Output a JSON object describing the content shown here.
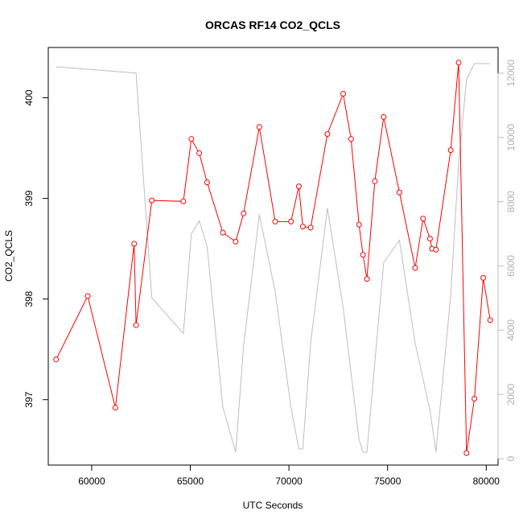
{
  "chart_data": {
    "type": "line",
    "title": "ORCAS RF14 CO2_QCLS",
    "xlabel": "UTC Seconds",
    "ylabel": "CO2_QCLS",
    "xlim": [
      57800,
      80600
    ],
    "ylim": [
      396.35,
      400.5
    ],
    "y2lim": [
      -200,
      12800
    ],
    "xticks": [
      60000,
      65000,
      70000,
      75000,
      80000
    ],
    "yticks": [
      397,
      398,
      399,
      400
    ],
    "y2ticks": [
      0,
      2000,
      4000,
      6000,
      8000,
      10000,
      12000
    ],
    "grid": false,
    "colors": {
      "primary": "#ff0000",
      "secondary": "#bebebe"
    },
    "series": [
      {
        "axis": "left",
        "style": "line+points",
        "x": [
          58200,
          59800,
          61200,
          62150,
          62250,
          63050,
          64650,
          65050,
          65450,
          65850,
          66650,
          67300,
          67700,
          68500,
          69300,
          70100,
          70500,
          70700,
          71100,
          71950,
          72750,
          73150,
          73550,
          73750,
          73950,
          74350,
          74800,
          75600,
          76400,
          76800,
          77150,
          77250,
          77450,
          78200,
          78600,
          79000,
          79400,
          79850,
          80200
        ],
        "y": [
          397.4,
          398.03,
          396.92,
          398.55,
          397.74,
          398.98,
          398.97,
          399.59,
          399.45,
          399.16,
          398.66,
          398.57,
          398.85,
          399.71,
          398.77,
          398.77,
          399.12,
          398.72,
          398.71,
          399.64,
          400.04,
          399.59,
          398.74,
          398.44,
          398.2,
          399.17,
          399.81,
          399.06,
          398.31,
          398.8,
          398.6,
          398.5,
          398.49,
          399.48,
          400.35,
          396.47,
          397.01,
          398.21,
          397.79
        ]
      },
      {
        "axis": "right",
        "style": "line",
        "x": [
          58200,
          62250,
          63050,
          64650,
          65050,
          65450,
          65850,
          66650,
          67300,
          67700,
          68500,
          69300,
          70100,
          70500,
          70700,
          71100,
          71950,
          72750,
          73550,
          73750,
          73950,
          74800,
          75600,
          76400,
          77150,
          77450,
          78200,
          78600,
          79000,
          79400,
          80200
        ],
        "y": [
          12200,
          12000,
          5000,
          3900,
          7000,
          7400,
          6600,
          1600,
          200,
          3500,
          7600,
          5200,
          1600,
          300,
          300,
          3600,
          7800,
          4700,
          600,
          200,
          200,
          6100,
          6800,
          3600,
          1500,
          200,
          5100,
          9200,
          11800,
          12300,
          12300
        ]
      }
    ]
  }
}
